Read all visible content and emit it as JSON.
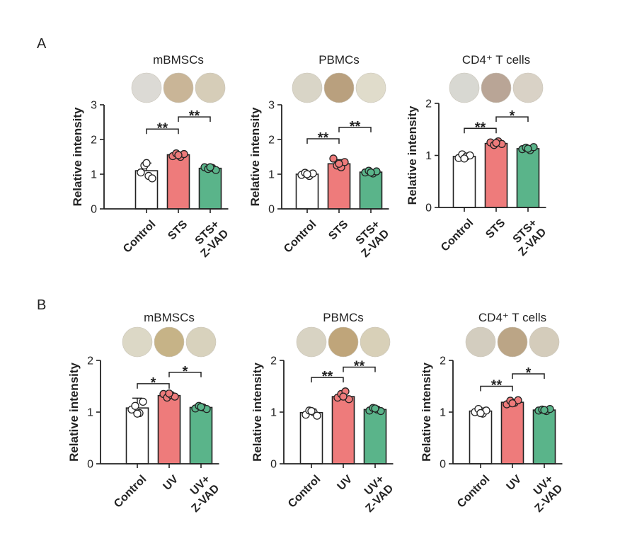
{
  "panels": [
    {
      "id": "A",
      "label": "A"
    },
    {
      "id": "B",
      "label": "B"
    }
  ],
  "colors": {
    "control": "#ffffff",
    "treatment": "#ee7b7b",
    "zvad": "#5ab48a",
    "axis": "#222222"
  },
  "chart_data": [
    {
      "panel": "A",
      "type": "bar",
      "title": "mBMSCs",
      "ylabel": "Relative intensity",
      "ylim": [
        0,
        3
      ],
      "yticks": [
        0,
        1,
        2,
        3
      ],
      "categories": [
        {
          "lines": [
            "Control"
          ]
        },
        {
          "lines": [
            "STS"
          ]
        },
        {
          "lines": [
            "STS+",
            "Z-VAD"
          ]
        }
      ],
      "values": [
        1.1,
        1.56,
        1.17
      ],
      "errors": [
        0.22,
        0.08,
        0.04
      ],
      "points": [
        [
          1.05,
          1.25,
          0.95,
          0.88,
          1.32
        ],
        [
          1.52,
          1.6,
          1.5,
          1.58,
          1.55
        ],
        [
          1.2,
          1.15,
          1.18,
          1.12,
          1.2
        ]
      ],
      "swatches": [
        "#dcdad5",
        "#c9b597",
        "#d6cdb8"
      ],
      "significance": [
        {
          "from": 0,
          "to": 1,
          "label": "**",
          "y": 2.3
        },
        {
          "from": 1,
          "to": 2,
          "label": "**",
          "y": 2.65
        }
      ]
    },
    {
      "panel": "A",
      "type": "bar",
      "title": "PBMCs",
      "ylabel": "Relative intensity",
      "ylim": [
        0,
        3
      ],
      "yticks": [
        0,
        1,
        2,
        3
      ],
      "categories": [
        {
          "lines": [
            "Control"
          ]
        },
        {
          "lines": [
            "STS"
          ]
        },
        {
          "lines": [
            "STS+",
            "Z-VAD"
          ]
        }
      ],
      "values": [
        1.0,
        1.3,
        1.06
      ],
      "errors": [
        0.06,
        0.12,
        0.05
      ],
      "points": [
        [
          0.98,
          1.04,
          0.95,
          1.02,
          1.0
        ],
        [
          1.45,
          1.25,
          1.2,
          1.35,
          1.3
        ],
        [
          1.05,
          1.1,
          1.02,
          1.08,
          1.05
        ]
      ],
      "swatches": [
        "#d9d5c7",
        "#b9a07e",
        "#e0dccb"
      ],
      "significance": [
        {
          "from": 0,
          "to": 1,
          "label": "**",
          "y": 2.02
        },
        {
          "from": 1,
          "to": 2,
          "label": "**",
          "y": 2.35
        }
      ]
    },
    {
      "panel": "A",
      "type": "bar",
      "title": "CD4⁺ T cells",
      "ylabel": "Relative intensity",
      "ylim": [
        0,
        2
      ],
      "yticks": [
        0,
        1,
        2
      ],
      "categories": [
        {
          "lines": [
            "Control"
          ]
        },
        {
          "lines": [
            "STS"
          ]
        },
        {
          "lines": [
            "STS+",
            "Z-VAD"
          ]
        }
      ],
      "values": [
        0.98,
        1.23,
        1.13
      ],
      "errors": [
        0.05,
        0.04,
        0.03
      ],
      "points": [
        [
          0.95,
          1.02,
          0.98,
          1.0,
          0.94
        ],
        [
          1.25,
          1.2,
          1.27,
          1.22,
          1.24
        ],
        [
          1.12,
          1.15,
          1.1,
          1.16,
          1.13
        ]
      ],
      "swatches": [
        "#d8d8d2",
        "#b9a596",
        "#d9d2c6"
      ],
      "significance": [
        {
          "from": 0,
          "to": 1,
          "label": "**",
          "y": 1.52
        },
        {
          "from": 1,
          "to": 2,
          "label": "*",
          "y": 1.74
        }
      ]
    },
    {
      "panel": "B",
      "type": "bar",
      "title": "mBMSCs",
      "ylabel": "Relative intensity",
      "ylim": [
        0,
        2
      ],
      "yticks": [
        0,
        1,
        2
      ],
      "categories": [
        {
          "lines": [
            "Control"
          ]
        },
        {
          "lines": [
            "UV"
          ]
        },
        {
          "lines": [
            "UV+",
            "Z-VAD"
          ]
        }
      ],
      "values": [
        1.08,
        1.32,
        1.09
      ],
      "errors": [
        0.19,
        0.05,
        0.03
      ],
      "points": [
        [
          1.05,
          1.12,
          0.98,
          1.2,
          0.97
        ],
        [
          1.35,
          1.28,
          1.33,
          1.3,
          1.36
        ],
        [
          1.07,
          1.12,
          1.09,
          1.06,
          1.1
        ]
      ],
      "swatches": [
        "#dcd8c6",
        "#c6b387",
        "#d8d2bd"
      ],
      "significance": [
        {
          "from": 0,
          "to": 1,
          "label": "*",
          "y": 1.55
        },
        {
          "from": 1,
          "to": 2,
          "label": "*",
          "y": 1.77
        }
      ]
    },
    {
      "panel": "B",
      "type": "bar",
      "title": "PBMCs",
      "ylabel": "Relative intensity",
      "ylim": [
        0,
        2
      ],
      "yticks": [
        0,
        1,
        2
      ],
      "categories": [
        {
          "lines": [
            "Control"
          ]
        },
        {
          "lines": [
            "UV"
          ]
        },
        {
          "lines": [
            "UV+",
            "Z-VAD"
          ]
        }
      ],
      "values": [
        0.99,
        1.3,
        1.05
      ],
      "errors": [
        0.07,
        0.08,
        0.05
      ],
      "points": [
        [
          0.95,
          1.03,
          1.0,
          0.93,
          1.02
        ],
        [
          1.28,
          1.35,
          1.4,
          1.25,
          1.3
        ],
        [
          1.03,
          1.08,
          1.05,
          1.02,
          1.07
        ]
      ],
      "swatches": [
        "#d8d3c3",
        "#bfa57a",
        "#d8d0b8"
      ],
      "significance": [
        {
          "from": 0,
          "to": 1,
          "label": "**",
          "y": 1.67
        },
        {
          "from": 1,
          "to": 2,
          "label": "**",
          "y": 1.87
        }
      ]
    },
    {
      "panel": "B",
      "type": "bar",
      "title": "CD4⁺ T cells",
      "ylabel": "Relative intensity",
      "ylim": [
        0,
        2
      ],
      "yticks": [
        0,
        1,
        2
      ],
      "categories": [
        {
          "lines": [
            "Control"
          ]
        },
        {
          "lines": [
            "UV"
          ]
        },
        {
          "lines": [
            "UV+",
            "Z-VAD"
          ]
        }
      ],
      "values": [
        1.02,
        1.19,
        1.04
      ],
      "errors": [
        0.06,
        0.05,
        0.02
      ],
      "points": [
        [
          1.0,
          1.06,
          0.97,
          1.03,
          0.98
        ],
        [
          1.15,
          1.22,
          1.18,
          1.23,
          1.17
        ],
        [
          1.03,
          1.05,
          1.02,
          1.06,
          1.04
        ]
      ],
      "swatches": [
        "#d3cdbf",
        "#bba586",
        "#d4ccbb"
      ],
      "significance": [
        {
          "from": 0,
          "to": 1,
          "label": "**",
          "y": 1.5
        },
        {
          "from": 1,
          "to": 2,
          "label": "*",
          "y": 1.74
        }
      ]
    }
  ]
}
